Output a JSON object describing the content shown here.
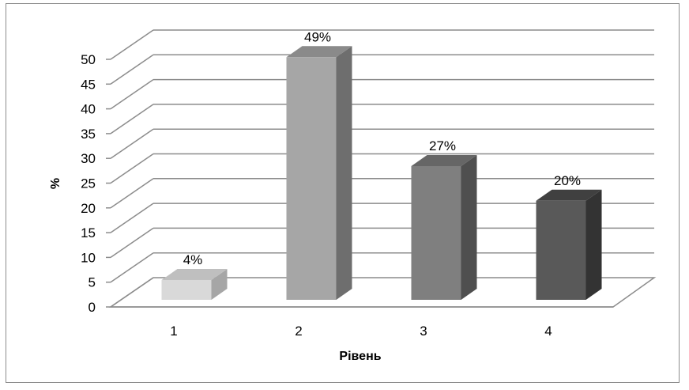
{
  "chart_data": {
    "type": "bar",
    "categories": [
      "1",
      "2",
      "3",
      "4"
    ],
    "values": [
      4,
      49,
      27,
      20
    ],
    "data_labels": [
      "4%",
      "49%",
      "27%",
      "20%"
    ],
    "xlabel": "Рівень",
    "ylabel": "%",
    "ylim": [
      0,
      50
    ],
    "y_ticks": [
      "0",
      "5",
      "10",
      "15",
      "20",
      "25",
      "30",
      "35",
      "40",
      "45",
      "50"
    ],
    "grid": true,
    "legend": "none",
    "style": "3d-column",
    "colors": {
      "1": {
        "front": "#d9d9d9",
        "side": "#a6a6a6",
        "top": "#bfbfbf"
      },
      "2": {
        "front": "#a6a6a6",
        "side": "#6e6e6e",
        "top": "#8a8a8a"
      },
      "3": {
        "front": "#7f7f7f",
        "side": "#4f4f4f",
        "top": "#666666"
      },
      "4": {
        "front": "#595959",
        "side": "#333333",
        "top": "#404040"
      }
    },
    "grid_color": "#8c8c8c"
  }
}
